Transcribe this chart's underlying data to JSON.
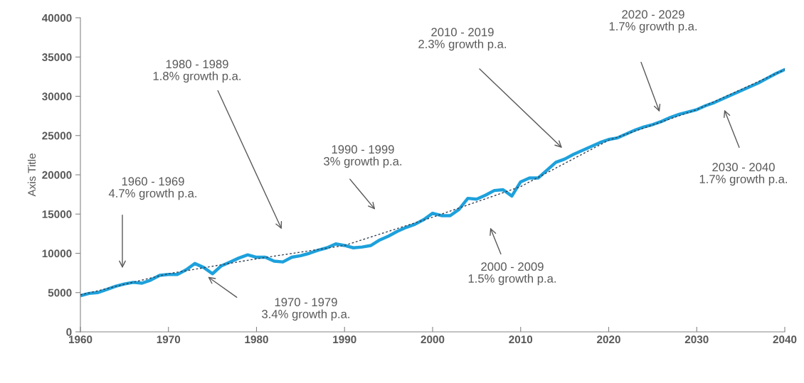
{
  "chart_data": {
    "type": "line",
    "ylabel": "Axis Title",
    "xlim": [
      1960,
      2040
    ],
    "ylim": [
      0,
      40000
    ],
    "xticks": [
      1960,
      1970,
      1980,
      1990,
      2000,
      2010,
      2020,
      2030,
      2040
    ],
    "yticks": [
      0,
      5000,
      10000,
      15000,
      20000,
      25000,
      30000,
      35000,
      40000
    ],
    "grid": false,
    "legend": false,
    "marker": "none",
    "x": [
      1960,
      1961,
      1962,
      1963,
      1964,
      1965,
      1966,
      1967,
      1968,
      1969,
      1970,
      1971,
      1972,
      1973,
      1974,
      1975,
      1976,
      1977,
      1978,
      1979,
      1980,
      1981,
      1982,
      1983,
      1984,
      1985,
      1986,
      1987,
      1988,
      1989,
      1990,
      1991,
      1992,
      1993,
      1994,
      1995,
      1996,
      1997,
      1998,
      1999,
      2000,
      2001,
      2002,
      2003,
      2004,
      2005,
      2006,
      2007,
      2008,
      2009,
      2010,
      2011,
      2012,
      2013,
      2014,
      2015,
      2016,
      2017,
      2018,
      2019,
      2020,
      2021,
      2022,
      2023,
      2024,
      2025,
      2026,
      2027,
      2028,
      2029,
      2030,
      2031,
      2032,
      2033,
      2034,
      2035,
      2036,
      2037,
      2038,
      2039,
      2040
    ],
    "series": [
      {
        "color": "#1da1dc",
        "line_style": "solid",
        "values": [
          4600,
          4900,
          5000,
          5400,
          5800,
          6100,
          6300,
          6200,
          6600,
          7200,
          7300,
          7300,
          7900,
          8700,
          8200,
          7400,
          8400,
          8900,
          9400,
          9800,
          9500,
          9500,
          9000,
          8900,
          9500,
          9700,
          10000,
          10400,
          10700,
          11200,
          11000,
          10700,
          10800,
          11000,
          11700,
          12200,
          12800,
          13300,
          13700,
          14300,
          15100,
          14800,
          14800,
          15600,
          17000,
          16900,
          17400,
          18000,
          18100,
          17300,
          19100,
          19600,
          19600,
          20600,
          21600,
          22000,
          22600,
          23100,
          23600,
          24100,
          24500,
          24700,
          25200,
          25700,
          26100,
          26400,
          26800,
          27300,
          27700,
          28000,
          28300,
          28800,
          29200,
          29700,
          30200,
          30700,
          31200,
          31700,
          32300,
          32900,
          33400
        ]
      },
      {
        "color": "#333f50",
        "line_style": "dashed",
        "x": [
          1960,
          1970,
          1980,
          1990,
          2000,
          2010,
          2020,
          2030,
          2040
        ],
        "values": [
          4700,
          7400,
          9300,
          11000,
          14600,
          18500,
          24400,
          28300,
          33400
        ]
      }
    ],
    "annotations": [
      "1960 - 1969\n4.7% growth p.a.",
      "1970 - 1979\n3.4% growth p.a.",
      "1980 - 1989\n1.8% growth p.a.",
      "1990 - 1999\n3% growth p.a.",
      "2000 - 2009\n1.5% growth p.a.",
      "2010 - 2019\n2.3% growth p.a.",
      "2020 - 2029\n1.7% growth p.a.",
      "2030 - 2040\n1.7% growth p.a."
    ]
  }
}
